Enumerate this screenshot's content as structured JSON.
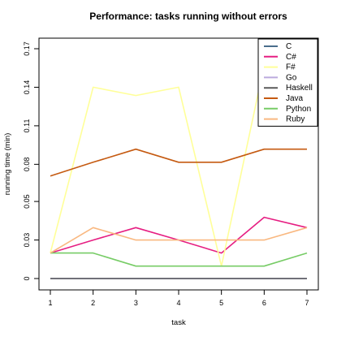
{
  "chart_data": {
    "type": "line",
    "title": "Performance: tasks running without errors",
    "xlabel": "task",
    "ylabel": "running time (min)",
    "x": [
      1,
      2,
      3,
      4,
      5,
      6,
      7
    ],
    "xticks": [
      "1",
      "2",
      "3",
      "4",
      "5",
      "6",
      "7"
    ],
    "yticks": [
      0,
      0.028,
      0.056,
      0.083,
      0.111,
      0.139,
      0.167
    ],
    "ytick_labels": [
      "0",
      "0.03",
      "0.05",
      "0.08",
      "0.11",
      "0.14",
      "0.17"
    ],
    "xlim": [
      1,
      7
    ],
    "ylim": [
      0,
      0.167
    ],
    "grid": false,
    "legend_position": "top-right",
    "series": [
      {
        "name": "C",
        "color": "#4a6e8c",
        "values": [
          0,
          0,
          0,
          0,
          0,
          0,
          0
        ]
      },
      {
        "name": "C#",
        "color": "#e61e82",
        "values": [
          0.0185,
          0.028,
          0.037,
          0.028,
          0.0185,
          0.0445,
          0.037
        ]
      },
      {
        "name": "F#",
        "color": "#ffff99",
        "values": [
          0.0185,
          0.139,
          0.133,
          0.139,
          0.009,
          0.155,
          0.155
        ]
      },
      {
        "name": "Go",
        "color": "#bbaadd",
        "values": [
          0,
          0,
          0,
          0,
          0,
          0,
          0
        ]
      },
      {
        "name": "Haskell",
        "color": "#5a5a5a",
        "values": [
          0,
          0,
          0,
          0,
          0,
          0,
          0
        ]
      },
      {
        "name": "Java",
        "color": "#c55a11",
        "values": [
          0.0745,
          0.0845,
          0.094,
          0.0845,
          0.0845,
          0.094,
          0.094
        ]
      },
      {
        "name": "Python",
        "color": "#77cc66",
        "values": [
          0.0185,
          0.0185,
          0.009,
          0.009,
          0.009,
          0.009,
          0.0185
        ]
      },
      {
        "name": "Ruby",
        "color": "#f9b880",
        "values": [
          0.0185,
          0.037,
          0.028,
          0.028,
          0.028,
          0.028,
          0.037
        ]
      }
    ]
  }
}
